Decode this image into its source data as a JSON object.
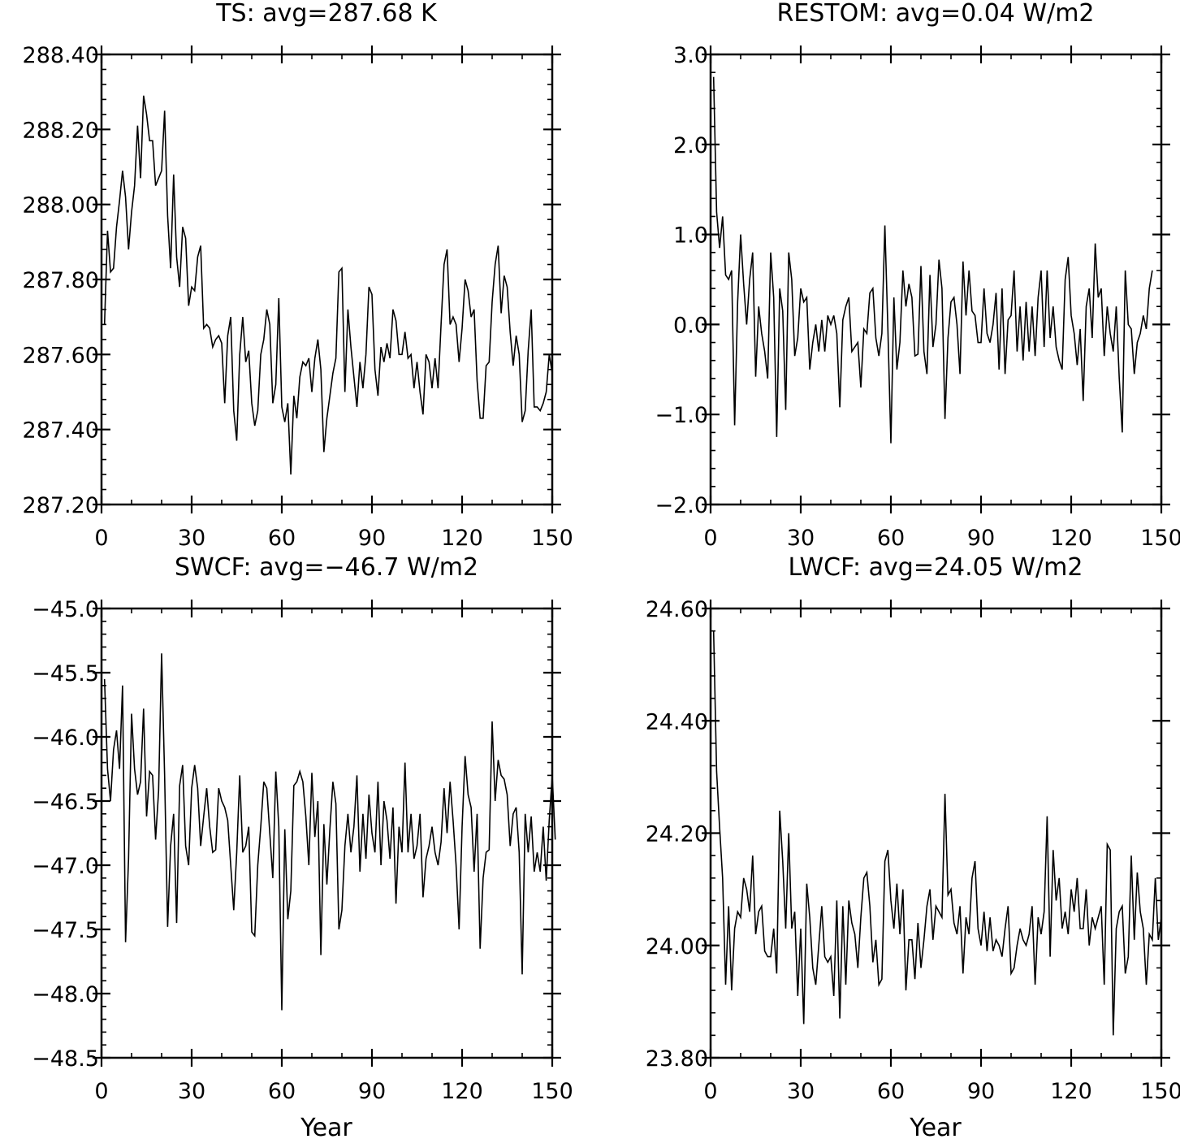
{
  "chart_data": [
    {
      "type": "line",
      "title": "TS: avg=287.68 K",
      "xlabel": "",
      "ylabel": "",
      "xlim": [
        0,
        150
      ],
      "ylim": [
        287.2,
        288.4
      ],
      "x_ticks": [
        0,
        30,
        60,
        90,
        120,
        150
      ],
      "x_tick_labels": [
        "0",
        "30",
        "60",
        "90",
        "120",
        "150"
      ],
      "y_ticks": [
        287.2,
        287.4,
        287.6,
        287.8,
        288.0,
        288.2,
        288.4
      ],
      "y_tick_labels": [
        "287.20",
        "287.40",
        "287.60",
        "287.80",
        "288.00",
        "288.20",
        "288.40"
      ],
      "y_minor_step": 0.04,
      "grid": false,
      "x_start": 1,
      "values": [
        287.68,
        287.93,
        287.82,
        287.83,
        287.94,
        288.01,
        288.09,
        288.02,
        287.88,
        287.98,
        288.05,
        288.21,
        288.07,
        288.29,
        288.24,
        288.17,
        288.17,
        288.05,
        288.07,
        288.09,
        288.25,
        287.97,
        287.83,
        288.08,
        287.86,
        287.78,
        287.94,
        287.91,
        287.73,
        287.78,
        287.77,
        287.86,
        287.89,
        287.67,
        287.68,
        287.67,
        287.62,
        287.64,
        287.65,
        287.63,
        287.47,
        287.65,
        287.7,
        287.45,
        287.37,
        287.6,
        287.7,
        287.58,
        287.61,
        287.47,
        287.41,
        287.45,
        287.6,
        287.64,
        287.72,
        287.68,
        287.47,
        287.52,
        287.75,
        287.46,
        287.42,
        287.47,
        287.28,
        287.49,
        287.43,
        287.54,
        287.58,
        287.57,
        287.59,
        287.5,
        287.59,
        287.64,
        287.56,
        287.34,
        287.43,
        287.49,
        287.55,
        287.59,
        287.82,
        287.83,
        287.5,
        287.72,
        287.62,
        287.54,
        287.46,
        287.58,
        287.51,
        287.6,
        287.78,
        287.76,
        287.56,
        287.49,
        287.62,
        287.58,
        287.63,
        287.59,
        287.72,
        287.69,
        287.6,
        287.6,
        287.66,
        287.59,
        287.6,
        287.51,
        287.58,
        287.5,
        287.44,
        287.6,
        287.58,
        287.51,
        287.59,
        287.51,
        287.68,
        287.84,
        287.88,
        287.68,
        287.7,
        287.68,
        287.58,
        287.67,
        287.8,
        287.77,
        287.7,
        287.72,
        287.53,
        287.43,
        287.43,
        287.57,
        287.58,
        287.74,
        287.84,
        287.89,
        287.71,
        287.81,
        287.78,
        287.66,
        287.57,
        287.65,
        287.6,
        287.42,
        287.45,
        287.61,
        287.72,
        287.46,
        287.46,
        287.45,
        287.47,
        287.5,
        287.6,
        287.55
      ]
    },
    {
      "type": "line",
      "title": "RESTOM: avg=0.04 W/m2",
      "xlabel": "",
      "ylabel": "",
      "xlim": [
        0,
        150
      ],
      "ylim": [
        -2.0,
        3.0
      ],
      "x_ticks": [
        0,
        30,
        60,
        90,
        120,
        150
      ],
      "x_tick_labels": [
        "0",
        "30",
        "60",
        "90",
        "120",
        "150"
      ],
      "y_ticks": [
        -2.0,
        -1.0,
        0.0,
        1.0,
        2.0,
        3.0
      ],
      "y_tick_labels": [
        "−2.0",
        "−1.0",
        "0.0",
        "1.0",
        "2.0",
        "3.0"
      ],
      "y_minor_step": 0.2,
      "grid": false,
      "x_start": 1,
      "values": [
        2.75,
        1.25,
        0.85,
        1.2,
        0.55,
        0.5,
        0.6,
        -1.12,
        0.25,
        1.0,
        0.45,
        0.0,
        0.5,
        0.8,
        -0.58,
        0.2,
        -0.1,
        -0.3,
        -0.6,
        0.8,
        0.3,
        -1.25,
        0.4,
        0.15,
        -0.95,
        0.8,
        0.5,
        -0.35,
        -0.15,
        0.4,
        0.25,
        0.3,
        -0.5,
        -0.2,
        0.0,
        -0.3,
        0.05,
        -0.3,
        0.1,
        0.0,
        0.1,
        -0.1,
        -0.92,
        0.05,
        0.2,
        0.3,
        -0.3,
        -0.25,
        -0.2,
        -0.7,
        -0.05,
        -0.1,
        0.35,
        0.4,
        -0.15,
        -0.35,
        -0.1,
        1.1,
        -0.05,
        -1.32,
        0.3,
        -0.5,
        -0.2,
        0.6,
        0.2,
        0.45,
        0.3,
        -0.35,
        -0.33,
        0.65,
        -0.3,
        -0.55,
        0.55,
        -0.25,
        0.0,
        0.72,
        0.4,
        -1.05,
        -0.15,
        0.25,
        0.3,
        0.0,
        -0.55,
        0.7,
        0.1,
        0.6,
        0.15,
        0.1,
        -0.2,
        -0.2,
        0.4,
        -0.1,
        -0.2,
        0.0,
        0.35,
        -0.5,
        0.4,
        -0.55,
        0.05,
        0.1,
        0.6,
        -0.3,
        0.2,
        -0.4,
        0.25,
        -0.3,
        0.2,
        -0.35,
        0.3,
        0.6,
        -0.25,
        0.6,
        -0.15,
        0.2,
        -0.25,
        -0.4,
        -0.5,
        0.5,
        0.75,
        0.1,
        -0.1,
        -0.45,
        -0.05,
        -0.85,
        0.2,
        0.4,
        -0.15,
        0.9,
        0.3,
        0.4,
        -0.35,
        0.2,
        -0.1,
        -0.3,
        0.2,
        -0.6,
        -1.2,
        0.6,
        0.0,
        -0.05,
        -0.55,
        -0.2,
        -0.1,
        0.1,
        -0.05,
        0.4,
        0.6
      ]
    },
    {
      "type": "line",
      "title": "SWCF: avg=−46.7 W/m2",
      "xlabel": "Year",
      "ylabel": "",
      "xlim": [
        0,
        150
      ],
      "ylim": [
        -48.5,
        -45.0
      ],
      "x_ticks": [
        0,
        30,
        60,
        90,
        120,
        150
      ],
      "x_tick_labels": [
        "0",
        "30",
        "60",
        "90",
        "120",
        "150"
      ],
      "y_ticks": [
        -48.5,
        -48.0,
        -47.5,
        -47.0,
        -46.5,
        -46.0,
        -45.5,
        -45.0
      ],
      "y_tick_labels": [
        "−48.5",
        "−48.0",
        "−47.5",
        "−47.0",
        "−46.5",
        "−46.0",
        "−45.5",
        "−45.0"
      ],
      "y_minor_step": 0.1,
      "grid": false,
      "x_start": 1,
      "values": [
        -45.55,
        -46.25,
        -46.5,
        -46.1,
        -45.95,
        -46.25,
        -45.6,
        -47.6,
        -46.95,
        -45.82,
        -46.25,
        -46.45,
        -46.35,
        -45.78,
        -46.62,
        -46.27,
        -46.3,
        -46.8,
        -46.42,
        -45.35,
        -46.3,
        -47.48,
        -46.85,
        -46.6,
        -47.45,
        -46.38,
        -46.22,
        -46.85,
        -47.0,
        -46.4,
        -46.22,
        -46.4,
        -46.85,
        -46.62,
        -46.4,
        -46.7,
        -46.9,
        -46.88,
        -46.4,
        -46.5,
        -46.55,
        -46.65,
        -47.0,
        -47.35,
        -46.9,
        -46.3,
        -46.9,
        -46.85,
        -46.7,
        -47.52,
        -47.55,
        -47.0,
        -46.7,
        -46.35,
        -46.4,
        -46.75,
        -47.1,
        -46.27,
        -46.7,
        -48.13,
        -46.72,
        -47.42,
        -47.2,
        -46.38,
        -46.35,
        -46.27,
        -46.35,
        -46.62,
        -47.0,
        -46.28,
        -46.78,
        -46.5,
        -47.7,
        -46.68,
        -47.15,
        -46.72,
        -46.35,
        -46.52,
        -47.5,
        -47.35,
        -46.85,
        -46.6,
        -46.9,
        -46.7,
        -46.3,
        -47.05,
        -46.6,
        -46.95,
        -46.45,
        -46.75,
        -46.9,
        -46.35,
        -47.0,
        -46.5,
        -46.65,
        -46.95,
        -46.55,
        -47.3,
        -46.7,
        -46.9,
        -46.2,
        -46.9,
        -46.6,
        -46.95,
        -46.85,
        -46.6,
        -47.25,
        -46.95,
        -46.85,
        -46.7,
        -46.9,
        -47.0,
        -46.82,
        -46.4,
        -46.75,
        -46.35,
        -46.65,
        -47.0,
        -47.5,
        -46.7,
        -46.15,
        -46.45,
        -46.55,
        -47.05,
        -46.6,
        -47.65,
        -47.1,
        -46.9,
        -46.88,
        -45.88,
        -46.5,
        -46.18,
        -46.3,
        -46.33,
        -46.45,
        -46.85,
        -46.6,
        -46.55,
        -46.9,
        -47.85,
        -46.6,
        -46.9,
        -46.62,
        -47.05,
        -46.9,
        -47.05,
        -46.7,
        -47.12,
        -46.65,
        -46.3,
        -46.8
      ]
    },
    {
      "type": "line",
      "title": "LWCF: avg=24.05 W/m2",
      "xlabel": "Year",
      "ylabel": "",
      "xlim": [
        0,
        150
      ],
      "ylim": [
        23.8,
        24.6
      ],
      "x_ticks": [
        0,
        30,
        60,
        90,
        120,
        150
      ],
      "x_tick_labels": [
        "0",
        "30",
        "60",
        "90",
        "120",
        "150"
      ],
      "y_ticks": [
        23.8,
        24.0,
        24.2,
        24.4,
        24.6
      ],
      "y_tick_labels": [
        "23.80",
        "24.00",
        "24.20",
        "24.40",
        "24.60"
      ],
      "y_minor_step": 0.04,
      "grid": false,
      "x_start": 1,
      "values": [
        24.56,
        24.31,
        24.21,
        24.12,
        23.93,
        24.07,
        23.92,
        24.03,
        24.06,
        24.05,
        24.12,
        24.1,
        24.06,
        24.16,
        24.02,
        24.06,
        24.07,
        23.99,
        23.98,
        23.98,
        24.03,
        23.95,
        24.24,
        24.15,
        24.03,
        24.2,
        24.03,
        24.06,
        23.91,
        24.03,
        23.86,
        24.11,
        24.05,
        23.96,
        23.93,
        24.0,
        24.07,
        23.98,
        23.97,
        23.98,
        23.91,
        24.08,
        23.87,
        24.07,
        23.93,
        24.08,
        24.04,
        24.02,
        23.96,
        24.05,
        24.12,
        24.13,
        24.07,
        23.97,
        24.01,
        23.93,
        23.94,
        24.15,
        24.17,
        24.08,
        24.03,
        24.11,
        24.02,
        24.1,
        23.92,
        24.01,
        24.01,
        23.94,
        24.04,
        23.96,
        24.01,
        24.07,
        24.1,
        24.01,
        24.07,
        24.06,
        24.05,
        24.27,
        24.09,
        24.1,
        24.04,
        24.02,
        24.07,
        23.95,
        24.05,
        24.02,
        24.12,
        24.15,
        24.03,
        24.0,
        24.06,
        23.99,
        24.05,
        23.99,
        24.01,
        24.0,
        23.98,
        24.03,
        24.07,
        23.95,
        23.96,
        24.0,
        24.03,
        24.01,
        24.0,
        24.02,
        24.07,
        23.93,
        24.05,
        24.02,
        24.06,
        24.23,
        23.98,
        24.17,
        24.08,
        24.12,
        24.03,
        24.06,
        24.02,
        24.1,
        24.06,
        24.12,
        24.03,
        24.03,
        24.1,
        24.0,
        24.05,
        24.03,
        24.05,
        24.07,
        23.93,
        24.18,
        24.17,
        23.84,
        24.03,
        24.06,
        24.07,
        23.95,
        23.98,
        24.16,
        24.01,
        24.13,
        24.06,
        24.03,
        23.93,
        24.02,
        24.01,
        24.12,
        24.01,
        24.05
      ]
    }
  ]
}
